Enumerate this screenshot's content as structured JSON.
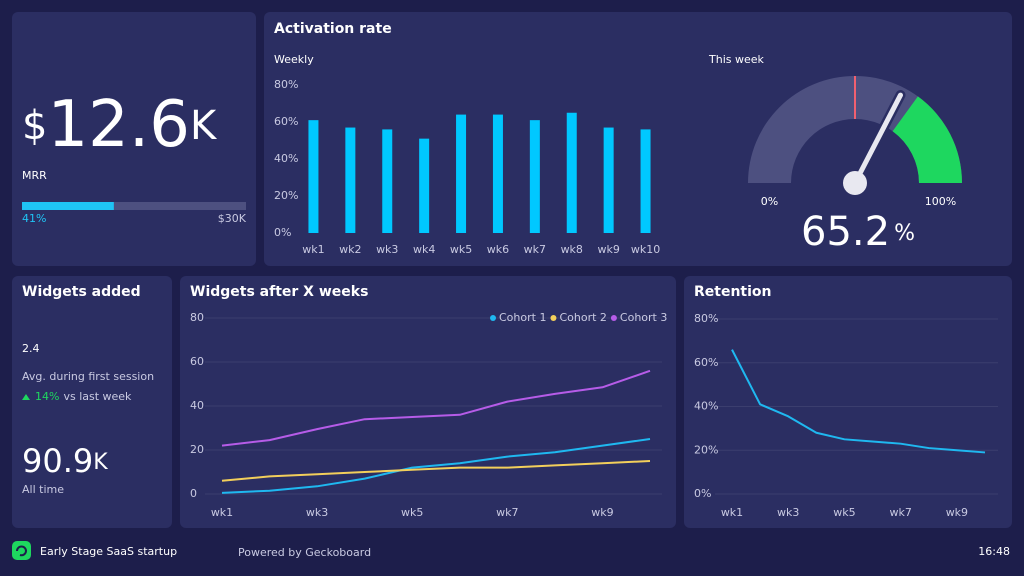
{
  "mrr": {
    "currency": "$",
    "value": 12.6,
    "unit": "K",
    "label": "MRR",
    "progress": {
      "value": 41,
      "label": "41%"
    },
    "progress_lim": [
      0,
      100
    ],
    "target": "$30K"
  },
  "widgets_added": {
    "title": "Widgets added",
    "average": 2.4,
    "average_label": "Avg. during first session",
    "change": "14%",
    "change_label": "vs last week",
    "all_time": "90.9",
    "all_time_unit": "K",
    "all_time_label": "All time"
  },
  "footer": {
    "title": "Early Stage SaaS startup",
    "powered_by": "Powered by Geckoboard",
    "time": "16:48"
  },
  "chart_data": [
    {
      "type": "bar",
      "title": "Activation rate",
      "subtitle": "Weekly",
      "categories": [
        "wk1",
        "wk2",
        "wk3",
        "wk4",
        "wk5",
        "wk6",
        "wk7",
        "wk8",
        "wk9",
        "wk10"
      ],
      "values": [
        61,
        57,
        56,
        51,
        64,
        64,
        61,
        65,
        57,
        56
      ],
      "color": "#00c8ff",
      "ylim": [
        0,
        80
      ],
      "yticks": [
        {
          "value": 0,
          "label": "0%"
        },
        {
          "value": 20,
          "label": "20%"
        },
        {
          "value": 40,
          "label": "40%"
        },
        {
          "value": 60,
          "label": "60%"
        },
        {
          "value": 80,
          "label": "80%"
        }
      ]
    },
    {
      "type": "gauge",
      "title": "This week",
      "value": 65.2,
      "unit": "%",
      "lim": [
        0,
        100
      ],
      "ticks": [
        {
          "value": 0,
          "label": "0%"
        },
        {
          "value": 100,
          "label": "100%"
        }
      ],
      "marker": 50,
      "marker_color": "#f06070",
      "track_color": "#4d5080",
      "bands": [
        {
          "from": 70,
          "to": 100,
          "color": "#1ed75f"
        }
      ]
    },
    {
      "type": "line",
      "title": "Widgets after X weeks",
      "categories": [
        "wk1",
        null,
        "wk3",
        null,
        "wk5",
        null,
        "wk7",
        null,
        "wk9",
        null
      ],
      "series": [
        {
          "name": "Cohort 1",
          "color": "#1fb8f0",
          "values": [
            0.5,
            1.5,
            3.5,
            7,
            12,
            14,
            17,
            19,
            22,
            25
          ]
        },
        {
          "name": "Cohort 2",
          "color": "#f2cf5b",
          "values": [
            6,
            8,
            9,
            10,
            11,
            12,
            12,
            13,
            14,
            15
          ]
        },
        {
          "name": "Cohort 3",
          "color": "#b65ce8",
          "values": [
            22,
            24.5,
            29.5,
            34,
            35,
            36,
            42,
            45.5,
            48.5,
            56
          ]
        }
      ],
      "ylim": [
        0,
        80
      ],
      "yticks": [
        0,
        20,
        40,
        60,
        80
      ],
      "grid": true
    },
    {
      "type": "line",
      "title": "Retention",
      "categories": [
        "wk1",
        null,
        "wk3",
        null,
        "wk5",
        null,
        "wk7",
        null,
        "wk9",
        null
      ],
      "series": [
        {
          "color": "#1fb8f0",
          "values": [
            66,
            41,
            35.5,
            28,
            25,
            24,
            23,
            21,
            20,
            19
          ]
        }
      ],
      "ylim": [
        0,
        80
      ],
      "yticks": [
        {
          "value": 0,
          "label": "0%"
        },
        {
          "value": 20,
          "label": "20%"
        },
        {
          "value": 40,
          "label": "40%"
        },
        {
          "value": 60,
          "label": "60%"
        },
        {
          "value": 80,
          "label": "80%"
        }
      ],
      "grid": true
    }
  ]
}
